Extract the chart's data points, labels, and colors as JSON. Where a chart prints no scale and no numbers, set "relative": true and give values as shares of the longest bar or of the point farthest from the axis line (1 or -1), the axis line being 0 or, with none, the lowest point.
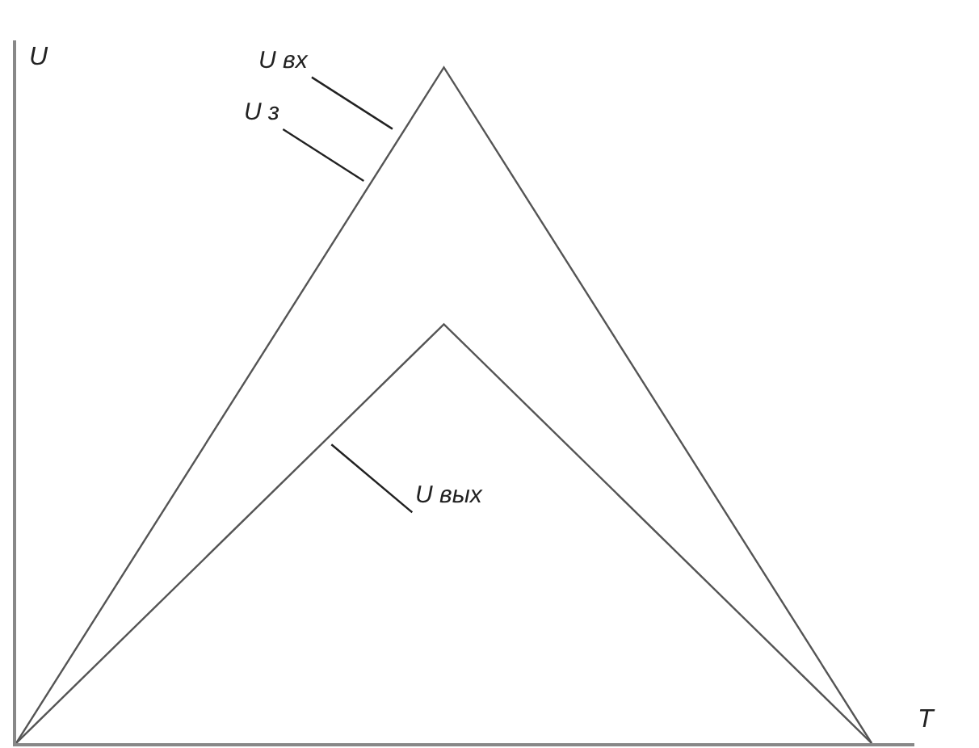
{
  "chart_data": {
    "type": "line",
    "relative": true,
    "xlabel": "T",
    "ylabel": "U",
    "categories": [
      null,
      null,
      null
    ],
    "series": [
      {
        "color": "#555555",
        "values": [
          0,
          1,
          0
        ]
      },
      {
        "color": "#555555",
        "values": [
          0,
          0.62,
          0
        ]
      }
    ],
    "annotations": [
      "U вх",
      "U з",
      "U вых"
    ],
    "grid": false,
    "marker": "none",
    "line_style": "solid"
  }
}
